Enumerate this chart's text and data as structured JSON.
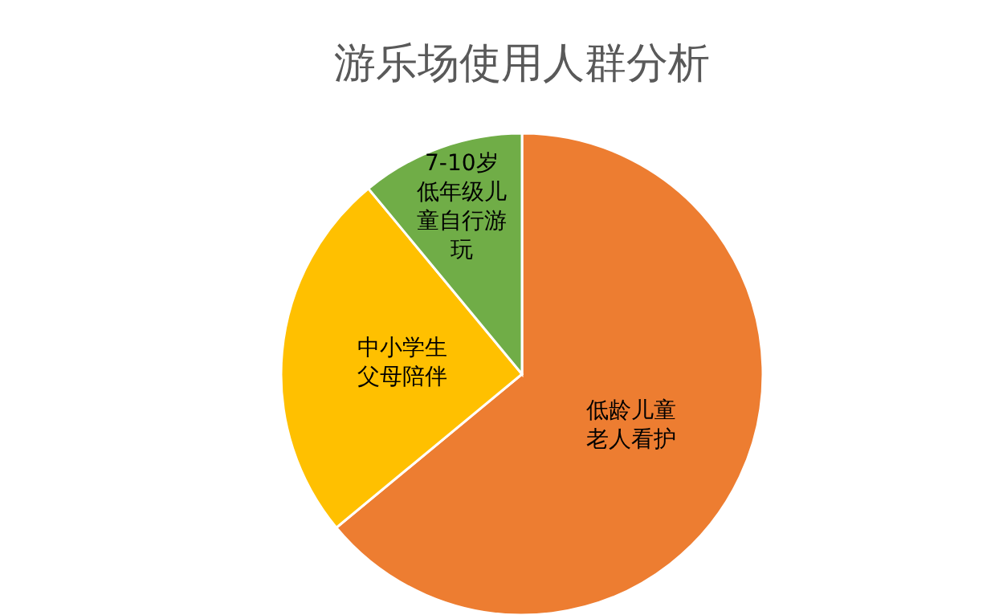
{
  "chart_data": {
    "type": "pie",
    "title": "游乐场使用人群分析",
    "categories": [
      "低龄儿童老人看护",
      "中小学生父母陪伴",
      "7-10岁低年级儿童自行游玩"
    ],
    "values": [
      64,
      25,
      11
    ],
    "colors": [
      "#ed7d31",
      "#ffc000",
      "#70ad47"
    ]
  }
}
